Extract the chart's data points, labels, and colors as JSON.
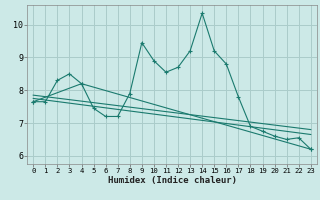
{
  "xlabel": "Humidex (Indice chaleur)",
  "background_color": "#cce9e7",
  "grid_color": "#aaccca",
  "line_color": "#1a7a6e",
  "xlim": [
    -0.5,
    23.5
  ],
  "ylim": [
    5.75,
    10.6
  ],
  "yticks": [
    6,
    7,
    8,
    9,
    10
  ],
  "xticks": [
    0,
    1,
    2,
    3,
    4,
    5,
    6,
    7,
    8,
    9,
    10,
    11,
    12,
    13,
    14,
    15,
    16,
    17,
    18,
    19,
    20,
    21,
    22,
    23
  ],
  "series1_x": [
    0,
    1,
    2,
    3,
    4,
    5,
    6,
    7,
    8,
    9,
    10,
    11,
    12,
    13,
    14,
    15,
    16,
    17,
    18,
    19,
    20,
    21,
    22,
    23
  ],
  "series1_y": [
    7.65,
    7.65,
    8.3,
    8.5,
    8.2,
    7.45,
    7.2,
    7.2,
    7.9,
    9.45,
    8.9,
    8.55,
    8.7,
    9.2,
    10.35,
    9.2,
    8.8,
    7.8,
    6.9,
    6.75,
    6.6,
    6.5,
    6.55,
    6.2
  ],
  "series2_x": [
    0,
    4,
    23
  ],
  "series2_y": [
    7.65,
    8.2,
    6.2
  ],
  "series3_x": [
    0,
    23
  ],
  "series3_y": [
    7.85,
    6.8
  ],
  "series4_x": [
    0,
    23
  ],
  "series4_y": [
    7.75,
    6.65
  ]
}
